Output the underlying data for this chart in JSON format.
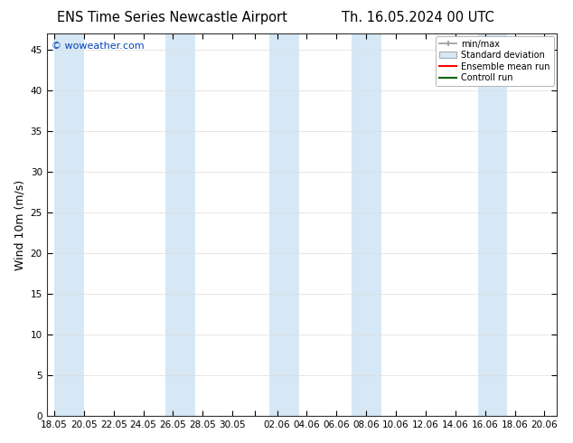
{
  "title_left": "ENS Time Series Newcastle Airport",
  "title_right": "Th. 16.05.2024 00 UTC",
  "ylabel": "Wind 10m (m/s)",
  "watermark": "© woweather.com",
  "ylim": [
    0,
    47
  ],
  "yticks": [
    0,
    5,
    10,
    15,
    20,
    25,
    30,
    35,
    40,
    45
  ],
  "x_tick_labels": [
    "18.05",
    "20.05",
    "22.05",
    "24.05",
    "26.05",
    "28.05",
    "30.05",
    "",
    "02.06",
    "04.06",
    "06.06",
    "08.06",
    "10.06",
    "12.06",
    "14.06",
    "16.06",
    "18.06",
    "20.06"
  ],
  "tick_positions": [
    0,
    2,
    4,
    6,
    8,
    10,
    12,
    13.5,
    15,
    17,
    19,
    21,
    23,
    25,
    27,
    29,
    31,
    33
  ],
  "xlim": [
    -0.5,
    33.8
  ],
  "band_regions": [
    [
      0.0,
      2.0
    ],
    [
      7.5,
      9.5
    ],
    [
      14.5,
      16.5
    ],
    [
      20.0,
      22.0
    ],
    [
      28.5,
      30.5
    ]
  ],
  "shade_color": "#d6e8f5",
  "bg_color": "#ffffff",
  "grid_color": "#dddddd",
  "legend_items": [
    {
      "label": "min/max",
      "color": "#aaaaaa",
      "type": "errorbar"
    },
    {
      "label": "Standard deviation",
      "color": "#d6e8f5",
      "type": "band"
    },
    {
      "label": "Ensemble mean run",
      "color": "#ff0000",
      "type": "line"
    },
    {
      "label": "Controll run",
      "color": "#006600",
      "type": "line"
    }
  ],
  "tick_label_fontsize": 7.5,
  "axis_label_fontsize": 9,
  "title_fontsize": 10.5,
  "watermark_fontsize": 8,
  "watermark_color": "#0044bb"
}
